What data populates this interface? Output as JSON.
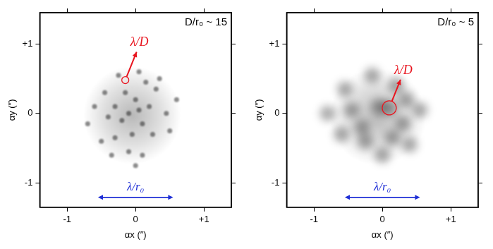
{
  "chart_data": [
    {
      "type": "scatter",
      "title": "D/r₀ ~ 15",
      "x_label": "αx (″)",
      "y_label": "αy (″)",
      "xlim": [
        -1.4,
        1.4
      ],
      "xticks": [
        -1,
        0,
        {
          "value": 1,
          "label": "+1"
        }
      ],
      "ylim": [
        -1.35,
        1.45
      ],
      "yticks": [
        -1,
        0,
        {
          "value": 1,
          "label": "+1"
        }
      ],
      "grid": false,
      "marker": "dot",
      "color": "#000000",
      "speckles": [
        [
          -0.1,
          0
        ],
        [
          0.05,
          0.05
        ],
        [
          -0.2,
          -0.1
        ],
        [
          0.1,
          -0.15
        ],
        [
          -0.3,
          0.1
        ],
        [
          0,
          0.2
        ],
        [
          -0.15,
          0.3
        ],
        [
          0.2,
          0.1
        ],
        [
          -0.4,
          -0.05
        ],
        [
          -0.05,
          -0.3
        ],
        [
          0.25,
          -0.3
        ],
        [
          -0.3,
          -0.35
        ],
        [
          0.3,
          0.35
        ],
        [
          -0.45,
          0.3
        ],
        [
          0.15,
          0.45
        ],
        [
          -0.6,
          0.1
        ],
        [
          0.45,
          0
        ],
        [
          -0.1,
          -0.55
        ],
        [
          0.1,
          -0.6
        ],
        [
          -0.5,
          -0.4
        ],
        [
          0.5,
          -0.25
        ],
        [
          0.35,
          0.5
        ],
        [
          -0.25,
          0.55
        ],
        [
          0.6,
          0.2
        ],
        [
          -0.7,
          -0.15
        ],
        [
          0,
          -0.75
        ],
        [
          0.05,
          0.6
        ],
        [
          -0.35,
          -0.6
        ]
      ],
      "annotations": [
        {
          "text": "λ/D",
          "color": "#e8141e",
          "circle": [
            -0.15,
            0.48
          ]
        },
        {
          "text": "λ/r₀",
          "color": "#1f2fd6",
          "span": [
            -0.55,
            0.55
          ]
        }
      ]
    },
    {
      "type": "scatter",
      "title": "D/r₀ ~ 5",
      "x_label": "αx (″)",
      "y_label": "αy (″)",
      "xlim": [
        -1.4,
        1.4
      ],
      "xticks": [
        -1,
        0,
        {
          "value": 1,
          "label": "+1"
        }
      ],
      "ylim": [
        -1.35,
        1.45
      ],
      "yticks": [
        -1,
        0,
        {
          "value": 1,
          "label": "+1"
        }
      ],
      "grid": false,
      "marker": "blob",
      "color": "#000000",
      "speckles": [
        [
          -0.45,
          0.05
        ],
        [
          -0.3,
          -0.2
        ],
        [
          -0.05,
          0.1
        ],
        [
          0.1,
          0.08
        ],
        [
          -0.6,
          -0.3
        ],
        [
          0.2,
          0.4
        ],
        [
          0.35,
          0.2
        ],
        [
          -0.25,
          -0.4
        ],
        [
          0.3,
          -0.15
        ],
        [
          -0.55,
          0.35
        ],
        [
          0,
          -0.6
        ],
        [
          0.4,
          -0.45
        ],
        [
          -0.15,
          0.55
        ],
        [
          0.55,
          0.05
        ],
        [
          -0.8,
          0
        ],
        [
          0.15,
          -0.35
        ]
      ],
      "annotations": [
        {
          "text": "λ/D",
          "color": "#e8141e",
          "circle": [
            0.1,
            0.08
          ]
        },
        {
          "text": "λ/r₀",
          "color": "#1f2fd6",
          "span": [
            -0.55,
            0.55
          ]
        }
      ]
    }
  ]
}
